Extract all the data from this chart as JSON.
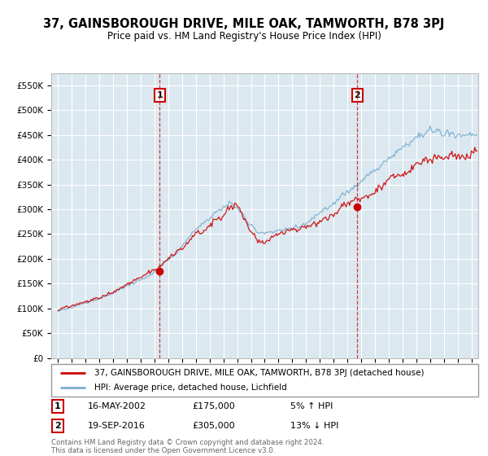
{
  "title": "37, GAINSBOROUGH DRIVE, MILE OAK, TAMWORTH, B78 3PJ",
  "subtitle": "Price paid vs. HM Land Registry's House Price Index (HPI)",
  "property_label": "37, GAINSBOROUGH DRIVE, MILE OAK, TAMWORTH, B78 3PJ (detached house)",
  "hpi_label": "HPI: Average price, detached house, Lichfield",
  "sale1_date": "16-MAY-2002",
  "sale1_price": "£175,000",
  "sale1_note": "5% ↑ HPI",
  "sale2_date": "19-SEP-2016",
  "sale2_price": "£305,000",
  "sale2_note": "13% ↓ HPI",
  "vline1_x": 2002.37,
  "vline2_x": 2016.72,
  "sale1_marker_x": 2002.37,
  "sale1_marker_y": 175000,
  "sale2_marker_x": 2016.72,
  "sale2_marker_y": 305000,
  "ylim": [
    0,
    575000
  ],
  "xlim": [
    1994.5,
    2025.5
  ],
  "property_color": "#cc0000",
  "hpi_color": "#7aadcf",
  "background_color": "#dce8f0",
  "footer_text": "Contains HM Land Registry data © Crown copyright and database right 2024.\nThis data is licensed under the Open Government Licence v3.0.",
  "yticks": [
    0,
    50000,
    100000,
    150000,
    200000,
    250000,
    300000,
    350000,
    400000,
    450000,
    500000,
    550000
  ],
  "ytick_labels": [
    "£0",
    "£50K",
    "£100K",
    "£150K",
    "£200K",
    "£250K",
    "£300K",
    "£350K",
    "£400K",
    "£450K",
    "£500K",
    "£550K"
  ]
}
